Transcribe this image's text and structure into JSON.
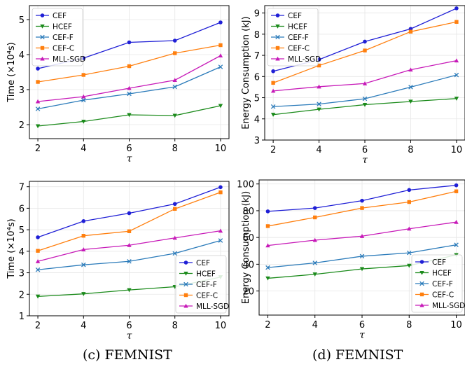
{
  "colors": {
    "CEF": "#1f1fd6",
    "HCEF": "#1a8a1a",
    "CEF-F": "#2b7bba",
    "CEF-C": "#ff7f0e",
    "MLL-SGD": "#c71ab8"
  },
  "captions": {
    "c": "(c) FEMNIST",
    "d": "(d) FEMNIST"
  },
  "chart_data": [
    {
      "type": "line",
      "x": [
        2,
        4,
        6,
        8,
        10
      ],
      "xlabel": "τ",
      "ylabel": "Time (×10⁴s)",
      "ylim": [
        1.6,
        5.4
      ],
      "yticks": [
        2,
        3,
        4,
        5
      ],
      "xticks": [
        2,
        4,
        6,
        8,
        10
      ],
      "grid": true,
      "legend": "top-left",
      "series": [
        {
          "name": "CEF",
          "marker": "circle",
          "values": [
            3.6,
            3.9,
            4.35,
            4.4,
            4.92
          ]
        },
        {
          "name": "HCEF",
          "marker": "triangle-down",
          "values": [
            1.96,
            2.09,
            2.28,
            2.26,
            2.54
          ]
        },
        {
          "name": "CEF-F",
          "marker": "x",
          "values": [
            2.45,
            2.7,
            2.88,
            3.08,
            3.65
          ]
        },
        {
          "name": "CEF-C",
          "marker": "square",
          "values": [
            3.22,
            3.42,
            3.67,
            4.04,
            4.27
          ]
        },
        {
          "name": "MLL-SGD",
          "marker": "triangle-up",
          "values": [
            2.66,
            2.8,
            3.04,
            3.27,
            3.97
          ]
        }
      ]
    },
    {
      "type": "line",
      "x": [
        2,
        4,
        6,
        8,
        10
      ],
      "xlabel": "τ",
      "ylabel": "Energy Consumption (kJ)",
      "ylim": [
        3,
        9.35
      ],
      "yticks": [
        3,
        4,
        5,
        6,
        7,
        8,
        9
      ],
      "xticks": [
        2,
        4,
        6,
        8,
        10
      ],
      "grid": true,
      "legend": "top-left",
      "series": [
        {
          "name": "CEF",
          "marker": "circle",
          "values": [
            6.25,
            6.8,
            7.65,
            8.25,
            9.22
          ]
        },
        {
          "name": "HCEF",
          "marker": "triangle-down",
          "values": [
            4.2,
            4.45,
            4.67,
            4.82,
            4.96
          ]
        },
        {
          "name": "CEF-F",
          "marker": "x",
          "values": [
            4.58,
            4.7,
            4.95,
            5.5,
            6.07
          ]
        },
        {
          "name": "CEF-C",
          "marker": "square",
          "values": [
            5.7,
            6.52,
            7.23,
            8.12,
            8.58
          ]
        },
        {
          "name": "MLL-SGD",
          "marker": "triangle-up",
          "values": [
            5.32,
            5.52,
            5.67,
            6.32,
            6.75
          ]
        }
      ]
    },
    {
      "type": "line",
      "x": [
        2,
        4,
        6,
        8,
        10
      ],
      "xlabel": "τ",
      "ylabel": "Time (×10⁴s)",
      "ylim": [
        1,
        7.25
      ],
      "yticks": [
        1,
        2,
        3,
        4,
        5,
        6,
        7
      ],
      "xticks": [
        2,
        4,
        6,
        8,
        10
      ],
      "grid": true,
      "legend": "bottom-right",
      "series": [
        {
          "name": "CEF",
          "marker": "circle",
          "values": [
            4.65,
            5.4,
            5.77,
            6.2,
            6.98
          ]
        },
        {
          "name": "HCEF",
          "marker": "triangle-down",
          "values": [
            1.9,
            2.02,
            2.2,
            2.35,
            2.8
          ]
        },
        {
          "name": "CEF-F",
          "marker": "x",
          "values": [
            3.14,
            3.37,
            3.53,
            3.9,
            4.5
          ]
        },
        {
          "name": "CEF-C",
          "marker": "square",
          "values": [
            4.02,
            4.72,
            4.93,
            5.97,
            6.74
          ]
        },
        {
          "name": "MLL-SGD",
          "marker": "triangle-up",
          "values": [
            3.53,
            4.08,
            4.28,
            4.62,
            4.95
          ]
        }
      ]
    },
    {
      "type": "line",
      "x": [
        2,
        4,
        6,
        8,
        10
      ],
      "xlabel": "τ",
      "ylabel": "Energy Consumption (kJ)",
      "ylim": [
        2,
        103
      ],
      "yticks": [
        20,
        40,
        60,
        80,
        100
      ],
      "xticks": [
        2,
        4,
        6,
        8,
        10
      ],
      "grid": true,
      "legend": "bottom-right",
      "series": [
        {
          "name": "CEF",
          "marker": "circle",
          "values": [
            79.5,
            82,
            87.5,
            95.5,
            99
          ]
        },
        {
          "name": "HCEF",
          "marker": "triangle-down",
          "values": [
            29.5,
            32.5,
            36.5,
            39,
            47
          ]
        },
        {
          "name": "CEF-F",
          "marker": "x",
          "values": [
            37.5,
            41,
            46,
            48.5,
            54.5
          ]
        },
        {
          "name": "CEF-C",
          "marker": "square",
          "values": [
            68.5,
            75,
            82,
            86.5,
            94.5
          ]
        },
        {
          "name": "MLL-SGD",
          "marker": "triangle-up",
          "values": [
            54,
            58,
            61,
            66.5,
            71.5
          ]
        }
      ]
    }
  ]
}
